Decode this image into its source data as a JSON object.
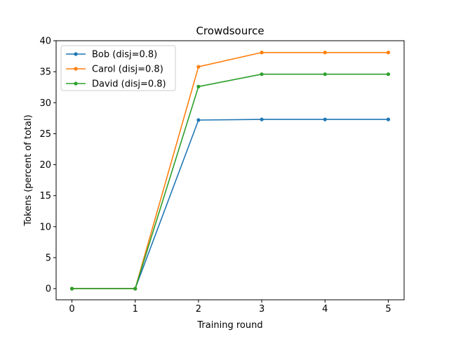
{
  "chart_data": {
    "type": "line",
    "title": "Crowdsource",
    "xlabel": "Training round",
    "ylabel": "Tokens (percent of total)",
    "x": [
      0,
      1,
      2,
      3,
      4,
      5
    ],
    "xlim": [
      -0.25,
      5.25
    ],
    "ylim": [
      -1.8,
      40
    ],
    "xticks": [
      0,
      1,
      2,
      3,
      4,
      5
    ],
    "yticks": [
      0,
      5,
      10,
      15,
      20,
      25,
      30,
      35,
      40
    ],
    "grid": false,
    "legend_position": "top-left",
    "marker": "circle",
    "series": [
      {
        "name": "Bob (disj=0.8)",
        "color": "#1f77b4",
        "values": [
          0,
          0,
          27.2,
          27.3,
          27.3,
          27.3
        ]
      },
      {
        "name": "Carol (disj=0.8)",
        "color": "#ff7f0e",
        "values": [
          0,
          0,
          35.8,
          38.1,
          38.1,
          38.1
        ]
      },
      {
        "name": "David (disj=0.8)",
        "color": "#2ca02c",
        "values": [
          0,
          0,
          32.6,
          34.6,
          34.6,
          34.6
        ]
      }
    ]
  }
}
